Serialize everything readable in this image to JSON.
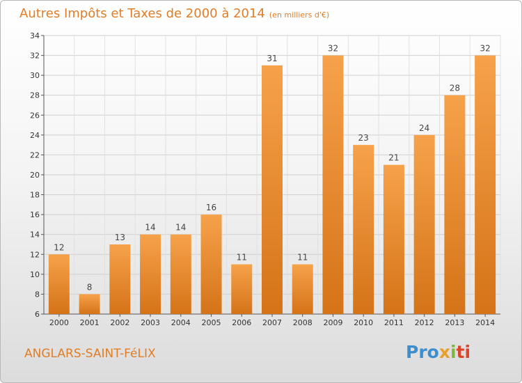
{
  "title": "Autres Impôts et Taxes de 2000 à 2014",
  "subtitle": "(en milliers d'€)",
  "commune": "ANGLARS-SAINT-FéLIX",
  "logo": {
    "p1": "Pro",
    "p2": "x",
    "p3": "i",
    "p4": "ti"
  },
  "colors": {
    "bar_light": "#f6a24a",
    "bar_dark": "#d57318",
    "text_accent": "#e07d25"
  },
  "chart_data": {
    "type": "bar",
    "title": "Autres Impôts et Taxes de 2000 à 2014",
    "subtitle": "(en milliers d'€)",
    "categories": [
      "2000",
      "2001",
      "2002",
      "2003",
      "2004",
      "2005",
      "2006",
      "2007",
      "2008",
      "2009",
      "2010",
      "2011",
      "2012",
      "2013",
      "2014"
    ],
    "values": [
      12,
      8,
      13,
      14,
      14,
      16,
      11,
      31,
      11,
      32,
      23,
      21,
      24,
      28,
      32
    ],
    "ylim": [
      6,
      34
    ],
    "yticks": [
      6,
      8,
      10,
      12,
      14,
      16,
      18,
      20,
      22,
      24,
      26,
      28,
      30,
      32,
      34
    ],
    "grid": true,
    "data_labels": true
  }
}
